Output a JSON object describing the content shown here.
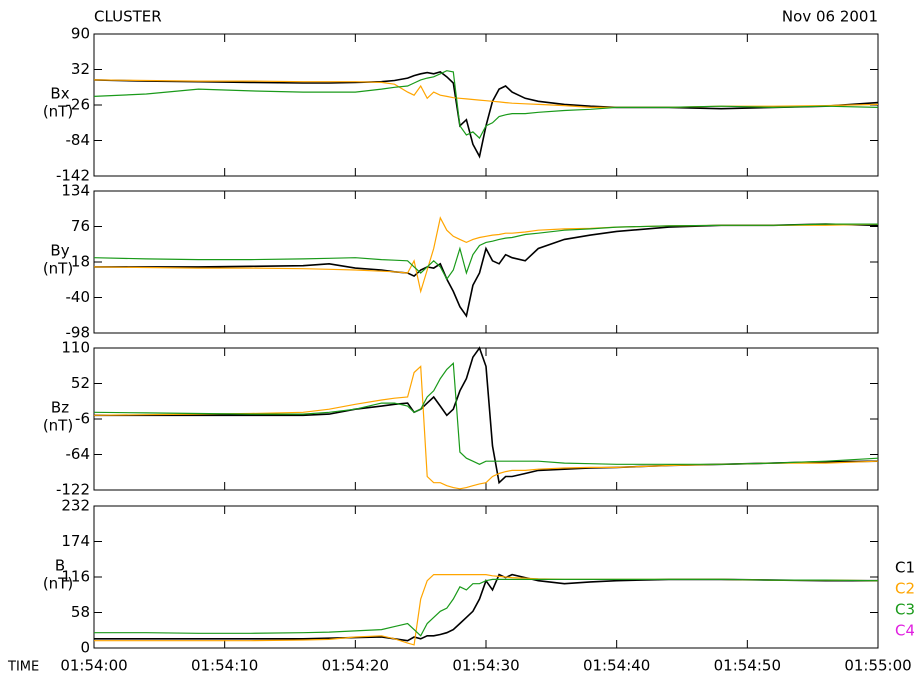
{
  "chart_data": [
    {
      "type": "line",
      "title": "CLUSTER",
      "subtitle": "Nov 06 2001",
      "ylabel": "Bx",
      "yunit": "(nT)",
      "x": [
        "01:54:00",
        "01:54:04",
        "01:54:08",
        "01:54:12",
        "01:54:16",
        "01:54:18",
        "01:54:20",
        "01:54:22",
        "01:54:23",
        "01:54:24",
        "01:54:24.5",
        "01:54:25",
        "01:54:25.5",
        "01:54:26",
        "01:54:26.5",
        "01:54:27",
        "01:54:27.5",
        "01:54:28",
        "01:54:28.5",
        "01:54:29",
        "01:54:29.5",
        "01:54:30",
        "01:54:30.5",
        "01:54:31",
        "01:54:31.5",
        "01:54:32",
        "01:54:33",
        "01:54:34",
        "01:54:36",
        "01:54:38",
        "01:54:40",
        "01:54:44",
        "01:54:48",
        "01:54:52",
        "01:54:56",
        "01:55:00"
      ],
      "xlim": [
        "01:54:00",
        "01:55:00"
      ],
      "ylim": [
        -142,
        90
      ],
      "yticks": [
        -142,
        -84,
        -26,
        32,
        90
      ],
      "series": [
        {
          "color": "#000000",
          "values": [
            15,
            13,
            12,
            11,
            10,
            10,
            11,
            12,
            14,
            18,
            22,
            25,
            27,
            25,
            28,
            20,
            10,
            -60,
            -50,
            -90,
            -110,
            -60,
            -20,
            0,
            5,
            -5,
            -15,
            -20,
            -25,
            -28,
            -30,
            -30,
            -32,
            -30,
            -28,
            -22
          ]
        },
        {
          "color": "#ffa500",
          "values": [
            15,
            14,
            13,
            13,
            12,
            12,
            12,
            11,
            8,
            -5,
            -10,
            5,
            -15,
            -5,
            -10,
            -12,
            -14,
            -15,
            -16,
            -17,
            -18,
            -19,
            -20,
            -21,
            -22,
            -23,
            -24,
            -25,
            -27,
            -30,
            -30,
            -30,
            -28,
            -28,
            -27,
            -25
          ]
        },
        {
          "color": "#1a9a1a",
          "values": [
            -12,
            -8,
            0,
            -3,
            -5,
            -5,
            -5,
            0,
            3,
            5,
            10,
            15,
            18,
            20,
            25,
            30,
            28,
            -60,
            -75,
            -70,
            -80,
            -60,
            -55,
            -45,
            -42,
            -40,
            -40,
            -38,
            -35,
            -33,
            -30,
            -30,
            -28,
            -30,
            -28,
            -30
          ]
        }
      ]
    },
    {
      "type": "line",
      "ylabel": "By",
      "yunit": "(nT)",
      "x": [
        "01:54:00",
        "01:54:04",
        "01:54:08",
        "01:54:12",
        "01:54:16",
        "01:54:18",
        "01:54:20",
        "01:54:22",
        "01:54:23",
        "01:54:24",
        "01:54:24.5",
        "01:54:25",
        "01:54:25.5",
        "01:54:26",
        "01:54:26.5",
        "01:54:27",
        "01:54:27.5",
        "01:54:28",
        "01:54:28.5",
        "01:54:29",
        "01:54:29.5",
        "01:54:30",
        "01:54:30.5",
        "01:54:31",
        "01:54:31.5",
        "01:54:32",
        "01:54:33",
        "01:54:34",
        "01:54:36",
        "01:54:38",
        "01:54:40",
        "01:54:44",
        "01:54:48",
        "01:54:52",
        "01:54:56",
        "01:55:00"
      ],
      "xlim": [
        "01:54:00",
        "01:55:00"
      ],
      "ylim": [
        -98,
        134
      ],
      "yticks": [
        -98,
        -40,
        18,
        76,
        134
      ],
      "series": [
        {
          "color": "#000000",
          "values": [
            10,
            10,
            10,
            11,
            12,
            15,
            8,
            5,
            2,
            0,
            -5,
            5,
            10,
            8,
            15,
            -10,
            -30,
            -55,
            -70,
            -20,
            0,
            40,
            20,
            15,
            30,
            25,
            20,
            40,
            55,
            62,
            68,
            75,
            78,
            78,
            80,
            78
          ]
        },
        {
          "color": "#ffa500",
          "values": [
            10,
            9,
            8,
            8,
            7,
            6,
            5,
            3,
            2,
            0,
            20,
            -30,
            5,
            40,
            90,
            70,
            60,
            55,
            50,
            55,
            58,
            60,
            62,
            63,
            65,
            65,
            67,
            70,
            72,
            73,
            75,
            77,
            78,
            78,
            78,
            80
          ]
        },
        {
          "color": "#1a9a1a",
          "values": [
            25,
            23,
            22,
            22,
            23,
            24,
            25,
            22,
            21,
            20,
            10,
            0,
            10,
            20,
            10,
            -10,
            5,
            40,
            0,
            30,
            45,
            50,
            52,
            55,
            57,
            58,
            63,
            65,
            70,
            72,
            75,
            77,
            78,
            78,
            80,
            80
          ]
        }
      ]
    },
    {
      "type": "line",
      "ylabel": "Bz",
      "yunit": "(nT)",
      "x": [
        "01:54:00",
        "01:54:04",
        "01:54:08",
        "01:54:12",
        "01:54:16",
        "01:54:18",
        "01:54:20",
        "01:54:22",
        "01:54:23",
        "01:54:24",
        "01:54:24.5",
        "01:54:25",
        "01:54:25.5",
        "01:54:26",
        "01:54:26.5",
        "01:54:27",
        "01:54:27.5",
        "01:54:28",
        "01:54:28.5",
        "01:54:29",
        "01:54:29.5",
        "01:54:30",
        "01:54:30.5",
        "01:54:31",
        "01:54:31.5",
        "01:54:32",
        "01:54:33",
        "01:54:34",
        "01:54:36",
        "01:54:38",
        "01:54:40",
        "01:54:44",
        "01:54:48",
        "01:54:52",
        "01:54:56",
        "01:55:00"
      ],
      "xlim": [
        "01:54:00",
        "01:55:00"
      ],
      "ylim": [
        -122,
        110
      ],
      "yticks": [
        -122,
        -64,
        -6,
        52,
        110
      ],
      "series": [
        {
          "color": "#000000",
          "values": [
            0,
            0,
            0,
            0,
            0,
            2,
            10,
            15,
            18,
            20,
            5,
            10,
            20,
            30,
            15,
            0,
            10,
            40,
            60,
            95,
            110,
            80,
            -50,
            -110,
            -100,
            -100,
            -95,
            -90,
            -88,
            -86,
            -85,
            -82,
            -80,
            -78,
            -76,
            -75
          ]
        },
        {
          "color": "#ffa500",
          "values": [
            0,
            1,
            2,
            3,
            5,
            10,
            18,
            25,
            28,
            30,
            70,
            80,
            -100,
            -110,
            -110,
            -115,
            -118,
            -120,
            -118,
            -115,
            -112,
            -110,
            -100,
            -95,
            -92,
            -90,
            -90,
            -88,
            -86,
            -85,
            -85,
            -82,
            -80,
            -78,
            -78,
            -75
          ]
        },
        {
          "color": "#1a9a1a",
          "values": [
            5,
            4,
            3,
            2,
            2,
            5,
            10,
            20,
            20,
            15,
            5,
            10,
            30,
            40,
            60,
            75,
            85,
            -60,
            -70,
            -75,
            -80,
            -75,
            -75,
            -75,
            -75,
            -75,
            -75,
            -75,
            -78,
            -79,
            -80,
            -80,
            -80,
            -78,
            -75,
            -70
          ]
        }
      ]
    },
    {
      "type": "line",
      "ylabel": "B",
      "yunit": "(nT)",
      "xlabel": "TIME",
      "x": [
        "01:54:00",
        "01:54:04",
        "01:54:08",
        "01:54:12",
        "01:54:16",
        "01:54:18",
        "01:54:20",
        "01:54:22",
        "01:54:23",
        "01:54:24",
        "01:54:24.5",
        "01:54:25",
        "01:54:25.5",
        "01:54:26",
        "01:54:26.5",
        "01:54:27",
        "01:54:27.5",
        "01:54:28",
        "01:54:28.5",
        "01:54:29",
        "01:54:29.5",
        "01:54:30",
        "01:54:30.5",
        "01:54:31",
        "01:54:31.5",
        "01:54:32",
        "01:54:33",
        "01:54:34",
        "01:54:36",
        "01:54:38",
        "01:54:40",
        "01:54:44",
        "01:54:48",
        "01:54:52",
        "01:54:56",
        "01:55:00"
      ],
      "xlim": [
        "01:54:00",
        "01:55:00"
      ],
      "xticks": [
        "01:54:00",
        "01:54:10",
        "01:54:20",
        "01:54:30",
        "01:54:40",
        "01:54:50",
        "01:55:00"
      ],
      "ylim": [
        0,
        232
      ],
      "yticks": [
        0,
        58,
        116,
        174,
        232
      ],
      "series": [
        {
          "name": "C1",
          "color": "#000000",
          "values": [
            15,
            15,
            15,
            15,
            15,
            16,
            17,
            18,
            15,
            12,
            18,
            15,
            20,
            20,
            22,
            25,
            30,
            40,
            50,
            60,
            80,
            110,
            95,
            120,
            115,
            120,
            115,
            110,
            105,
            108,
            110,
            112,
            112,
            111,
            110,
            110
          ]
        },
        {
          "name": "C2",
          "color": "#ffa500",
          "values": [
            12,
            12,
            12,
            12,
            13,
            14,
            18,
            20,
            15,
            8,
            5,
            80,
            110,
            120,
            120,
            120,
            120,
            120,
            120,
            120,
            120,
            120,
            118,
            117,
            116,
            115,
            114,
            113,
            112,
            112,
            112,
            112,
            112,
            111,
            111,
            110
          ]
        },
        {
          "name": "C3",
          "color": "#1a9a1a",
          "values": [
            25,
            25,
            24,
            24,
            25,
            26,
            28,
            30,
            35,
            40,
            30,
            20,
            40,
            50,
            60,
            65,
            80,
            100,
            95,
            105,
            105,
            110,
            112,
            112,
            112,
            112,
            112,
            112,
            112,
            112,
            112,
            112,
            112,
            111,
            111,
            110
          ]
        },
        {
          "name": "C4",
          "color": "#e020e0",
          "values": [
            null,
            null,
            null,
            null,
            null,
            null,
            null,
            null,
            null,
            null,
            null,
            null,
            null,
            null,
            null,
            null,
            null,
            null,
            null,
            null,
            null,
            null,
            null,
            null,
            null,
            null,
            null,
            null,
            null,
            null,
            null,
            null,
            null,
            null,
            null,
            null
          ]
        }
      ]
    }
  ]
}
